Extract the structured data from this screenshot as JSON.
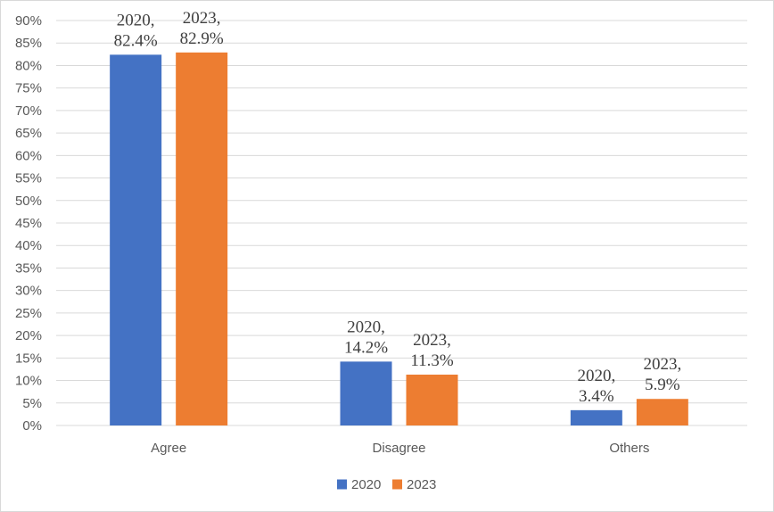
{
  "chart_data": {
    "type": "bar",
    "categories": [
      "Agree",
      "Disagree",
      "Others"
    ],
    "series": [
      {
        "name": "2020",
        "values": [
          82.4,
          14.2,
          3.4
        ],
        "color": "#4472C4"
      },
      {
        "name": "2023",
        "values": [
          82.9,
          11.3,
          5.9
        ],
        "color": "#ED7D31"
      }
    ],
    "data_labels": [
      [
        "2020,",
        "82.4%"
      ],
      [
        "2020,",
        "14.2%"
      ],
      [
        "2020,",
        "3.4%"
      ],
      [
        "2023,",
        "82.9%"
      ],
      [
        "2023,",
        "11.3%"
      ],
      [
        "2023,",
        "5.9%"
      ]
    ],
    "y_ticks": [
      "0%",
      "5%",
      "10%",
      "15%",
      "20%",
      "25%",
      "30%",
      "35%",
      "40%",
      "45%",
      "50%",
      "55%",
      "60%",
      "65%",
      "70%",
      "75%",
      "80%",
      "85%",
      "90%"
    ],
    "ylim": [
      0,
      90
    ],
    "y_step": 5,
    "grid": true,
    "legend_position": "bottom",
    "title": "",
    "xlabel": "",
    "ylabel": "",
    "gridline_color": "#d9d9d9"
  }
}
